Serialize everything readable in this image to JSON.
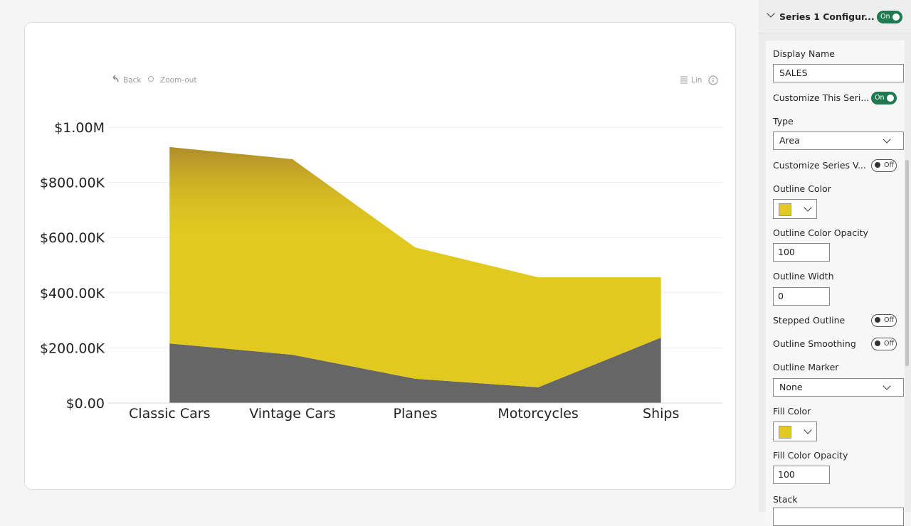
{
  "chart_data": {
    "type": "area",
    "stacked": true,
    "categories": [
      "Classic Cars",
      "Vintage Cars",
      "Planes",
      "Motorcycles",
      "Ships"
    ],
    "series": [
      {
        "color": "#666666",
        "values": [
          216000,
          175000,
          88000,
          57000,
          237000
        ]
      },
      {
        "color": "#e2c920",
        "values": [
          712000,
          709000,
          476000,
          399000,
          219000
        ]
      }
    ],
    "ylim": [
      0,
      1000000
    ],
    "yticks": [
      {
        "value": 0,
        "label": "$0.00"
      },
      {
        "value": 200000,
        "label": "$200.00K"
      },
      {
        "value": 400000,
        "label": "$400.00K"
      },
      {
        "value": 600000,
        "label": "$600.00K"
      },
      {
        "value": 800000,
        "label": "$800.00K"
      },
      {
        "value": 1000000,
        "label": "$1.00M"
      }
    ],
    "grid": true
  },
  "toolbar": {
    "back": "Back",
    "zoom_out": "Zoom-out",
    "scale": "Lin"
  },
  "panel": {
    "header": "Series 1 Configur...",
    "header_toggle": "On",
    "display_name": {
      "label": "Display Name",
      "value": "SALES"
    },
    "customize_series": {
      "label": "Customize This Seri...",
      "toggle": "On"
    },
    "type": {
      "label": "Type",
      "value": "Area"
    },
    "customize_values": {
      "label": "Customize Series V...",
      "toggle": "Off"
    },
    "outline_color": {
      "label": "Outline Color"
    },
    "outline_opacity": {
      "label": "Outline Color Opacity",
      "value": "100"
    },
    "outline_width": {
      "label": "Outline Width",
      "value": "0"
    },
    "stepped_outline": {
      "label": "Stepped Outline",
      "toggle": "Off"
    },
    "outline_smoothing": {
      "label": "Outline Smoothing",
      "toggle": "Off"
    },
    "outline_marker": {
      "label": "Outline Marker",
      "value": "None"
    },
    "fill_color": {
      "label": "Fill Color"
    },
    "fill_opacity": {
      "label": "Fill Color Opacity",
      "value": "100"
    },
    "stack": {
      "label": "Stack"
    }
  }
}
